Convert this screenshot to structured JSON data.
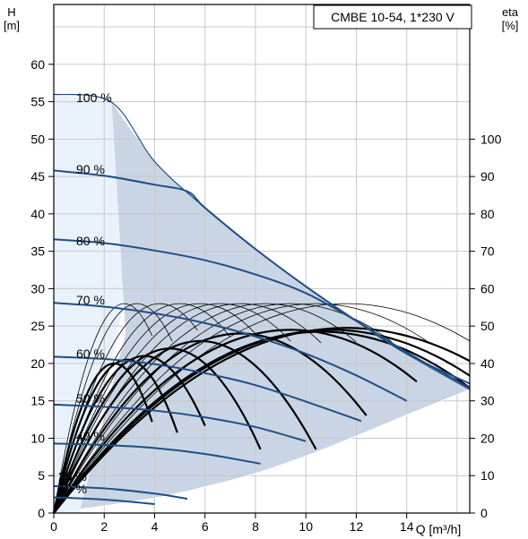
{
  "chart_data": {
    "type": "line",
    "title": "CMBE 10-54, 1*230 V",
    "xlabel": "Q [m³/h]",
    "ylabel_left": [
      "H",
      "[m]"
    ],
    "ylabel_right": [
      "eta",
      "[%]"
    ],
    "xlim": [
      0,
      16.5
    ],
    "ylim_left": [
      0,
      68
    ],
    "ylim_right": [
      0,
      136
    ],
    "x_ticks": [
      "0",
      "2",
      "4",
      "6",
      "8",
      "10",
      "12",
      "14"
    ],
    "y_left_ticks": [
      "0",
      "5",
      "10",
      "15",
      "20",
      "25",
      "30",
      "35",
      "40",
      "45",
      "50",
      "55",
      "60"
    ],
    "y_right_ticks": [
      "0",
      "10",
      "20",
      "30",
      "40",
      "50",
      "60",
      "70",
      "80",
      "90",
      "100"
    ],
    "grid": true,
    "colors": {
      "curve": "#1f4e86",
      "region": "#c9d5e4",
      "region_light": "#e9f2fb",
      "efficiency": "#000000",
      "grid": "#c8c8c8"
    },
    "envelope": [
      [
        0,
        56
      ],
      [
        2.3,
        54.9
      ],
      [
        4,
        47
      ],
      [
        6,
        40.8
      ],
      [
        8,
        35.3
      ],
      [
        10,
        30.3
      ],
      [
        12,
        25.7
      ],
      [
        14,
        21.3
      ],
      [
        16.5,
        16.5
      ]
    ],
    "bottom_boundary": [
      [
        1.05,
        0.5
      ],
      [
        4,
        2
      ],
      [
        6,
        3.5
      ],
      [
        8,
        5.3
      ],
      [
        10,
        7.6
      ],
      [
        12,
        10.3
      ],
      [
        14,
        13.1
      ],
      [
        16.5,
        16.5
      ]
    ],
    "region_edge_top": [
      4,
      48
    ],
    "pump_curves": [
      {
        "label": "100 %",
        "points": [
          [
            0,
            56
          ],
          [
            2.3,
            54.9
          ],
          [
            4,
            47
          ],
          [
            6,
            40.8
          ],
          [
            8,
            35.3
          ],
          [
            10,
            30.3
          ],
          [
            12,
            25.7
          ],
          [
            14,
            21.3
          ],
          [
            16.5,
            16.5
          ]
        ]
      },
      {
        "label": "90 %",
        "points": [
          [
            0,
            45.8
          ],
          [
            2,
            45.1
          ],
          [
            4,
            43.9
          ],
          [
            5.3,
            43
          ],
          [
            6,
            40.8
          ],
          [
            8,
            35.3
          ],
          [
            10,
            30.3
          ],
          [
            12,
            25.7
          ],
          [
            14,
            21.3
          ],
          [
            16.5,
            17.3
          ]
        ]
      },
      {
        "label": "80 %",
        "points": [
          [
            0,
            36.6
          ],
          [
            2,
            36.1
          ],
          [
            4,
            35.1
          ],
          [
            6,
            33.8
          ],
          [
            8,
            31.9
          ],
          [
            10,
            29.4
          ],
          [
            12,
            25.7
          ],
          [
            14,
            21.5
          ],
          [
            16.5,
            16.7
          ]
        ]
      },
      {
        "label": "70 %",
        "points": [
          [
            0,
            28.1
          ],
          [
            2,
            27.6
          ],
          [
            4,
            26.7
          ],
          [
            6,
            25.4
          ],
          [
            8,
            23.6
          ],
          [
            10,
            21.3
          ],
          [
            12,
            18.4
          ],
          [
            14,
            15
          ]
        ]
      },
      {
        "label": "60 %",
        "points": [
          [
            0,
            20.9
          ],
          [
            2,
            20.6
          ],
          [
            4,
            19.9
          ],
          [
            6,
            18.7
          ],
          [
            8,
            17.1
          ],
          [
            10,
            14.9
          ],
          [
            12.2,
            12.3
          ]
        ]
      },
      {
        "label": "50 %",
        "points": [
          [
            0,
            14.5
          ],
          [
            2,
            14.2
          ],
          [
            4,
            13.7
          ],
          [
            6,
            12.8
          ],
          [
            8,
            11.5
          ],
          [
            10,
            9.6
          ]
        ]
      },
      {
        "label": "40 %",
        "points": [
          [
            0,
            9.3
          ],
          [
            2,
            9.1
          ],
          [
            4,
            8.7
          ],
          [
            6,
            7.9
          ],
          [
            8.2,
            6.6
          ]
        ]
      },
      {
        "label": "25 %",
        "points": [
          [
            0,
            3.6
          ],
          [
            2,
            3.3
          ],
          [
            4,
            2.6
          ],
          [
            5.3,
            1.9
          ]
        ]
      },
      {
        "label": "19 %",
        "points": [
          [
            0,
            2.1
          ],
          [
            2,
            1.8
          ],
          [
            4,
            1.2
          ]
        ]
      }
    ],
    "efficiency_curves_thin": [
      {
        "peak_x": 2.8,
        "end_x": 3.9,
        "peak": 56
      },
      {
        "peak_x": 3.3,
        "end_x": 4.7,
        "peak": 56
      },
      {
        "peak_x": 4.2,
        "end_x": 5.7,
        "peak": 56
      },
      {
        "peak_x": 5.0,
        "end_x": 7.0,
        "peak": 56
      },
      {
        "peak_x": 5.8,
        "end_x": 8.2,
        "peak": 56
      },
      {
        "peak_x": 6.6,
        "end_x": 9.4,
        "peak": 56
      },
      {
        "peak_x": 7.4,
        "end_x": 10.6,
        "peak": 56
      },
      {
        "peak_x": 8.4,
        "end_x": 12.0,
        "peak": 56
      },
      {
        "peak_x": 9.4,
        "end_x": 13.4,
        "peak": 56
      },
      {
        "peak_x": 10.4,
        "end_x": 14.8,
        "peak": 56
      },
      {
        "peak_x": 11.6,
        "end_x": 16.5,
        "peak": 56
      }
    ],
    "efficiency_curves_thick": [
      {
        "peak_x": 2.4,
        "end_x": 3.9,
        "peak": 40
      },
      {
        "peak_x": 2.9,
        "end_x": 4.9,
        "peak": 41
      },
      {
        "peak_x": 3.6,
        "end_x": 6.0,
        "peak": 42
      },
      {
        "peak_x": 4.6,
        "end_x": 8.2,
        "peak": 44
      },
      {
        "peak_x": 5.8,
        "end_x": 10.4,
        "peak": 46
      },
      {
        "peak_x": 7.4,
        "end_x": 12.4,
        "peak": 48
      },
      {
        "peak_x": 9.4,
        "end_x": 14.4,
        "peak": 49
      },
      {
        "peak_x": 11.6,
        "end_x": 16.5,
        "peak": 49.5
      },
      {
        "peak_x": 11.0,
        "end_x": 16.5,
        "peak": 49
      },
      {
        "peak_x": 10.6,
        "end_x": 16.5,
        "peak": 48.5
      }
    ]
  }
}
